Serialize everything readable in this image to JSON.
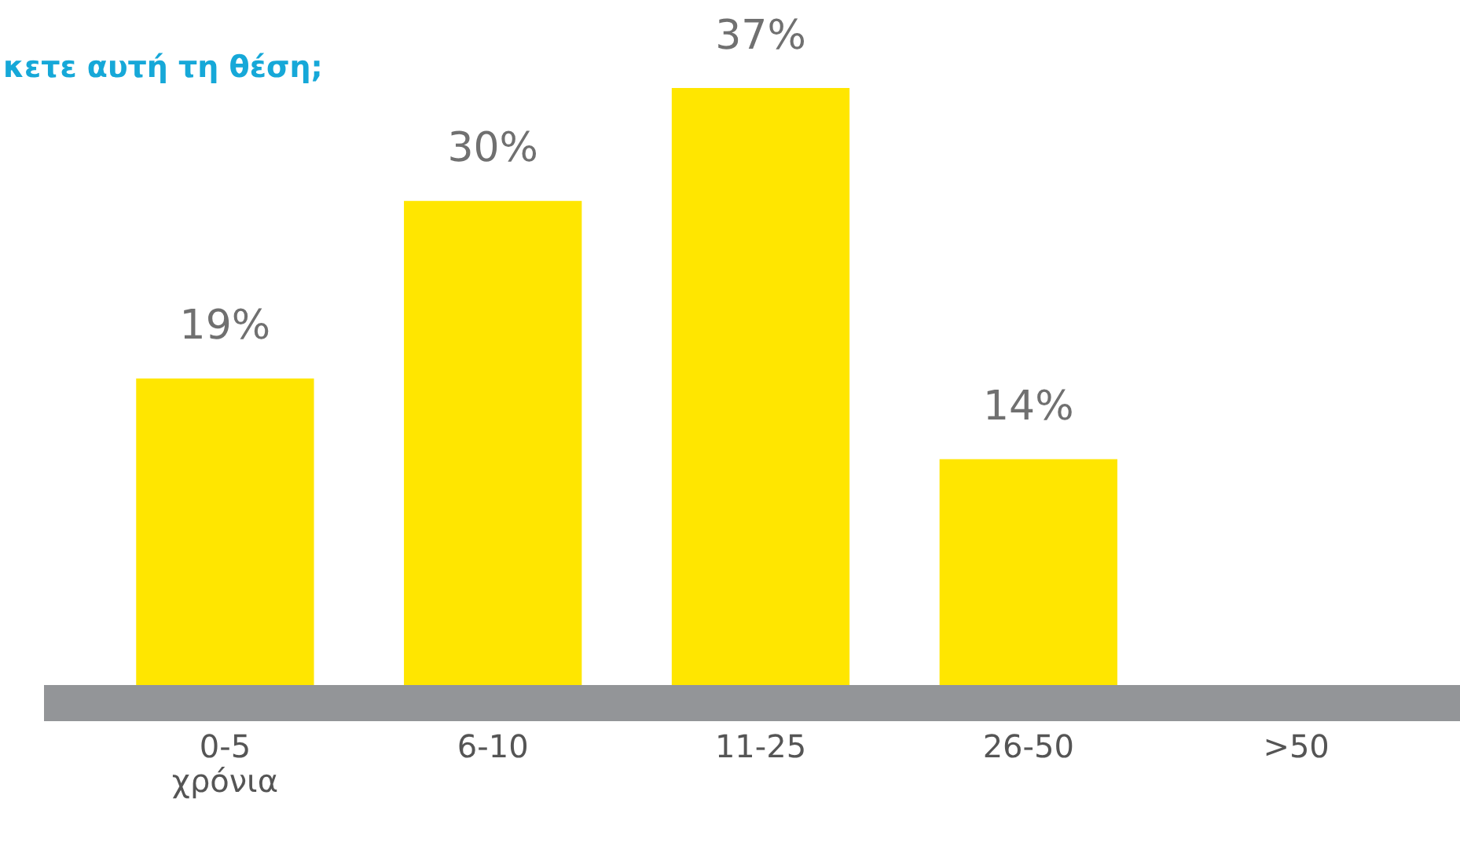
{
  "chart_data": {
    "type": "bar",
    "title": "κετε αυτή τη θέση;",
    "categories": [
      "0-5 χρόνια",
      "6-10",
      "11-25",
      "26-50",
      ">50"
    ],
    "values": [
      19,
      30,
      37,
      14,
      null
    ],
    "value_labels": [
      "19%",
      "30%",
      "37%",
      "14%",
      null
    ],
    "color": "#ffe600"
  }
}
